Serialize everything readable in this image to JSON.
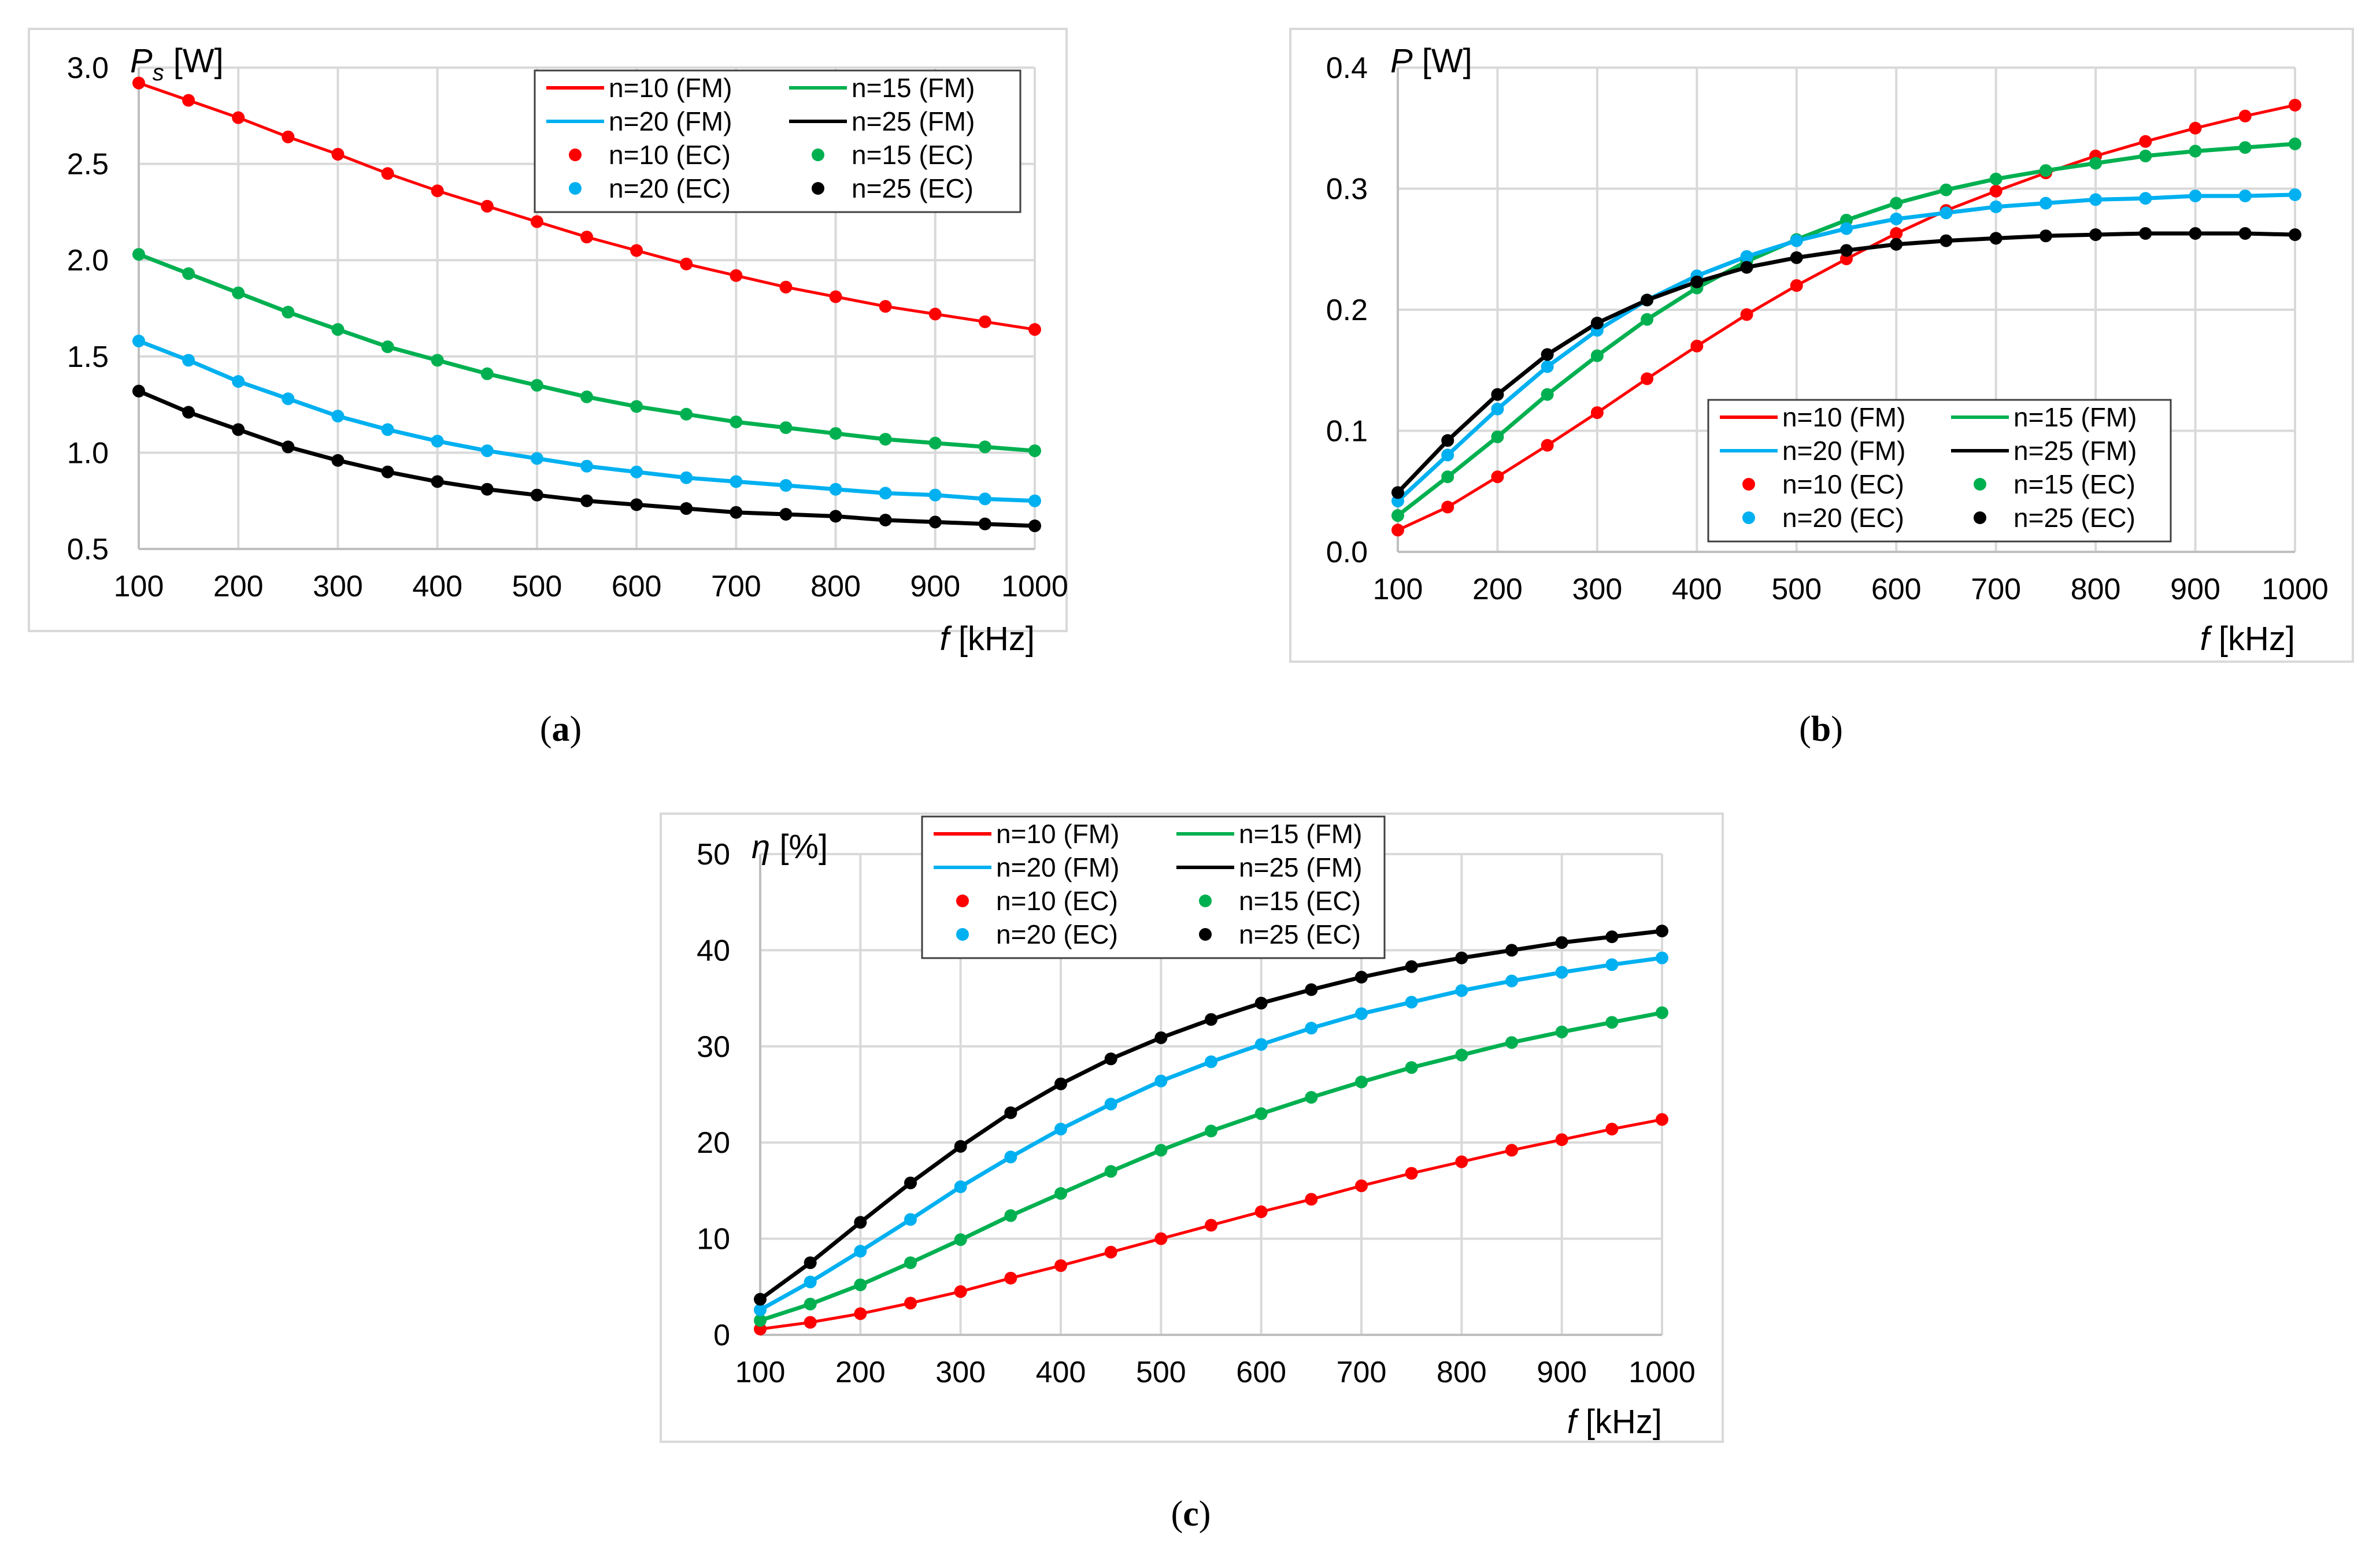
{
  "chart_data": [
    {
      "id": "a",
      "type": "line",
      "caption_letter": "a",
      "ylabel_symbol": "P",
      "ylabel_sub": "s",
      "ylabel_unit": "[W]",
      "xlabel_symbol": "f",
      "xlabel_unit": "[kHz]",
      "xlim": [
        100,
        1000
      ],
      "ylim": [
        0.5,
        3.0
      ],
      "yticks": [
        "0.5",
        "1.0",
        "1.5",
        "2.0",
        "2.5",
        "3.0"
      ],
      "xticks": [
        "100",
        "200",
        "300",
        "400",
        "500",
        "600",
        "700",
        "800",
        "900",
        "1000"
      ],
      "x": [
        100,
        150,
        200,
        250,
        300,
        350,
        400,
        450,
        500,
        550,
        600,
        650,
        700,
        750,
        800,
        850,
        900,
        950,
        1000
      ],
      "legend": [
        "n=10 (FM)",
        "n=15 (FM)",
        "n=20 (FM)",
        "n=25 (FM)",
        "n=10 (EC)",
        "n=15 (EC)",
        "n=20 (EC)",
        "n=25 (EC)"
      ],
      "series": [
        {
          "name": "n=10",
          "color": "#ff0000",
          "values": [
            2.92,
            2.83,
            2.74,
            2.64,
            2.55,
            2.45,
            2.36,
            2.28,
            2.2,
            2.12,
            2.05,
            1.98,
            1.92,
            1.86,
            1.81,
            1.76,
            1.72,
            1.68,
            1.64
          ]
        },
        {
          "name": "n=15",
          "color": "#00b050",
          "values": [
            2.03,
            1.93,
            1.83,
            1.73,
            1.64,
            1.55,
            1.48,
            1.41,
            1.35,
            1.29,
            1.24,
            1.2,
            1.16,
            1.13,
            1.1,
            1.07,
            1.05,
            1.03,
            1.01
          ]
        },
        {
          "name": "n=20",
          "color": "#00b0f0",
          "values": [
            1.58,
            1.48,
            1.37,
            1.28,
            1.19,
            1.12,
            1.06,
            1.01,
            0.97,
            0.93,
            0.9,
            0.87,
            0.85,
            0.83,
            0.81,
            0.79,
            0.78,
            0.76,
            0.75
          ]
        },
        {
          "name": "n=25",
          "color": "#000000",
          "values": [
            1.32,
            1.21,
            1.12,
            1.03,
            0.96,
            0.9,
            0.85,
            0.81,
            0.78,
            0.75,
            0.73,
            0.71,
            0.69,
            0.68,
            0.67,
            0.65,
            0.64,
            0.63,
            0.62
          ]
        }
      ]
    },
    {
      "id": "b",
      "type": "line",
      "caption_letter": "b",
      "ylabel_symbol": "P",
      "ylabel_sub": "",
      "ylabel_unit": "[W]",
      "xlabel_symbol": "f",
      "xlabel_unit": "[kHz]",
      "xlim": [
        100,
        1000
      ],
      "ylim": [
        0.0,
        0.4
      ],
      "yticks": [
        "0.0",
        "0.1",
        "0.2",
        "0.3",
        "0.4"
      ],
      "xticks": [
        "100",
        "200",
        "300",
        "400",
        "500",
        "600",
        "700",
        "800",
        "900",
        "1000"
      ],
      "x": [
        100,
        150,
        200,
        250,
        300,
        350,
        400,
        450,
        500,
        550,
        600,
        650,
        700,
        750,
        800,
        850,
        900,
        950,
        1000
      ],
      "legend": [
        "n=10 (FM)",
        "n=15 (FM)",
        "n=20 (FM)",
        "n=25 (FM)",
        "n=10 (EC)",
        "n=15 (EC)",
        "n=20 (EC)",
        "n=25 (EC)"
      ],
      "series": [
        {
          "name": "n=10",
          "color": "#ff0000",
          "values": [
            0.018,
            0.037,
            0.062,
            0.088,
            0.115,
            0.143,
            0.17,
            0.196,
            0.22,
            0.242,
            0.263,
            0.282,
            0.298,
            0.313,
            0.327,
            0.339,
            0.35,
            0.36,
            0.369
          ]
        },
        {
          "name": "n=15",
          "color": "#00b050",
          "values": [
            0.03,
            0.062,
            0.095,
            0.13,
            0.162,
            0.192,
            0.218,
            0.24,
            0.258,
            0.274,
            0.288,
            0.299,
            0.308,
            0.315,
            0.321,
            0.327,
            0.331,
            0.334,
            0.337
          ]
        },
        {
          "name": "n=20",
          "color": "#00b0f0",
          "values": [
            0.042,
            0.08,
            0.118,
            0.153,
            0.183,
            0.208,
            0.228,
            0.244,
            0.257,
            0.267,
            0.275,
            0.28,
            0.285,
            0.288,
            0.291,
            0.292,
            0.294,
            0.294,
            0.295
          ]
        },
        {
          "name": "n=25",
          "color": "#000000",
          "values": [
            0.049,
            0.092,
            0.13,
            0.163,
            0.189,
            0.208,
            0.223,
            0.235,
            0.243,
            0.249,
            0.254,
            0.257,
            0.259,
            0.261,
            0.262,
            0.263,
            0.263,
            0.263,
            0.262
          ]
        }
      ]
    },
    {
      "id": "c",
      "type": "line",
      "caption_letter": "c",
      "ylabel_symbol": "η",
      "ylabel_sub": "",
      "ylabel_unit": "[%]",
      "xlabel_symbol": "f",
      "xlabel_unit": "[kHz]",
      "xlim": [
        100,
        1000
      ],
      "ylim": [
        0,
        50
      ],
      "yticks": [
        "0",
        "10",
        "20",
        "30",
        "40",
        "50"
      ],
      "xticks": [
        "100",
        "200",
        "300",
        "400",
        "500",
        "600",
        "700",
        "800",
        "900",
        "1000"
      ],
      "x": [
        100,
        150,
        200,
        250,
        300,
        350,
        400,
        450,
        500,
        550,
        600,
        650,
        700,
        750,
        800,
        850,
        900,
        950,
        1000
      ],
      "legend": [
        "n=10 (FM)",
        "n=15 (FM)",
        "n=20 (FM)",
        "n=25 (FM)",
        "n=10 (EC)",
        "n=15 (EC)",
        "n=20 (EC)",
        "n=25 (EC)"
      ],
      "series": [
        {
          "name": "n=10",
          "color": "#ff0000",
          "values": [
            0.6,
            1.3,
            2.2,
            3.3,
            4.5,
            5.9,
            7.2,
            8.6,
            10.0,
            11.4,
            12.8,
            14.1,
            15.5,
            16.8,
            18.0,
            19.2,
            20.3,
            21.4,
            22.4
          ]
        },
        {
          "name": "n=15",
          "color": "#00b050",
          "values": [
            1.5,
            3.2,
            5.2,
            7.5,
            9.9,
            12.4,
            14.7,
            17.0,
            19.2,
            21.2,
            23.0,
            24.7,
            26.3,
            27.8,
            29.1,
            30.4,
            31.5,
            32.5,
            33.5
          ]
        },
        {
          "name": "n=20",
          "color": "#00b0f0",
          "values": [
            2.6,
            5.5,
            8.7,
            12.0,
            15.4,
            18.5,
            21.4,
            24.0,
            26.4,
            28.4,
            30.2,
            31.9,
            33.4,
            34.6,
            35.8,
            36.8,
            37.7,
            38.5,
            39.2
          ]
        },
        {
          "name": "n=25",
          "color": "#000000",
          "values": [
            3.7,
            7.5,
            11.7,
            15.8,
            19.6,
            23.1,
            26.1,
            28.7,
            30.9,
            32.8,
            34.5,
            35.9,
            37.2,
            38.3,
            39.2,
            40.0,
            40.8,
            41.4,
            42.0
          ]
        }
      ]
    }
  ]
}
